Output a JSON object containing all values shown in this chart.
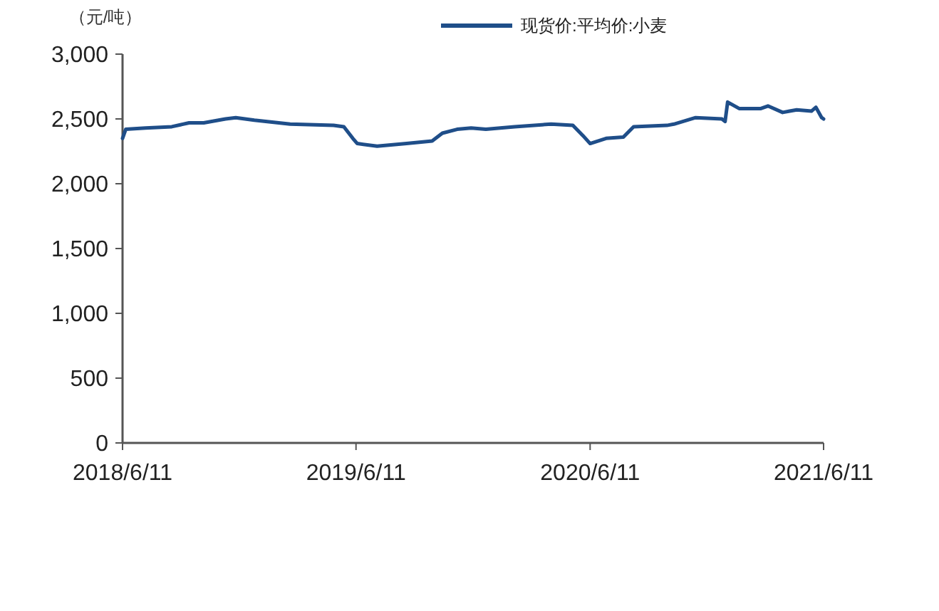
{
  "chart_data": {
    "type": "line",
    "ylabel": "（元/吨）",
    "legend": "top",
    "grid": false,
    "marker": "none",
    "line_style": "solid",
    "x": [
      "2018-06-11",
      "2018-06-16",
      "2018-07-17",
      "2018-08-27",
      "2018-09-23",
      "2018-10-16",
      "2018-11-19",
      "2018-12-05",
      "2019-01-03",
      "2019-02-28",
      "2019-05-07",
      "2019-05-23",
      "2019-06-06",
      "2019-06-13",
      "2019-07-14",
      "2019-08-29",
      "2019-10-08",
      "2019-10-24",
      "2019-11-16",
      "2019-12-08",
      "2019-12-31",
      "2020-02-14",
      "2020-04-11",
      "2020-05-15",
      "2020-05-31",
      "2020-06-11",
      "2020-07-06",
      "2020-08-02",
      "2020-08-18",
      "2020-10-09",
      "2020-10-20",
      "2020-11-23",
      "2021-01-03",
      "2021-01-08",
      "2021-01-12",
      "2021-01-30",
      "2021-03-05",
      "2021-03-16",
      "2021-04-08",
      "2021-04-19",
      "2021-04-30",
      "2021-05-23",
      "2021-05-30",
      "2021-06-08",
      "2021-06-11"
    ],
    "series": [
      {
        "name": "现货价:平均价:小麦",
        "color": "#1f4e89",
        "values": [
          2350,
          2420,
          2430,
          2440,
          2470,
          2470,
          2500,
          2510,
          2490,
          2460,
          2450,
          2440,
          2350,
          2310,
          2290,
          2310,
          2330,
          2390,
          2420,
          2430,
          2420,
          2440,
          2460,
          2450,
          2370,
          2310,
          2350,
          2360,
          2440,
          2450,
          2460,
          2510,
          2500,
          2480,
          2630,
          2580,
          2580,
          2600,
          2550,
          2560,
          2570,
          2560,
          2590,
          2510,
          2500
        ]
      }
    ],
    "xlim": [
      "2018-06-11",
      "2021-06-11"
    ],
    "xticks": [
      {
        "value": "2018-06-11",
        "label": "2018/6/11"
      },
      {
        "value": "2019-06-11",
        "label": "2019/6/11"
      },
      {
        "value": "2020-06-11",
        "label": "2020/6/11"
      },
      {
        "value": "2021-06-11",
        "label": "2021/6/11"
      }
    ],
    "ylim": [
      0,
      3000
    ],
    "yticks": [
      {
        "value": 0,
        "label": "0"
      },
      {
        "value": 500,
        "label": "500"
      },
      {
        "value": 1000,
        "label": "1,000"
      },
      {
        "value": 1500,
        "label": "1,500"
      },
      {
        "value": 2000,
        "label": "2,000"
      },
      {
        "value": 2500,
        "label": "2,500"
      },
      {
        "value": 3000,
        "label": "3,000"
      }
    ]
  }
}
